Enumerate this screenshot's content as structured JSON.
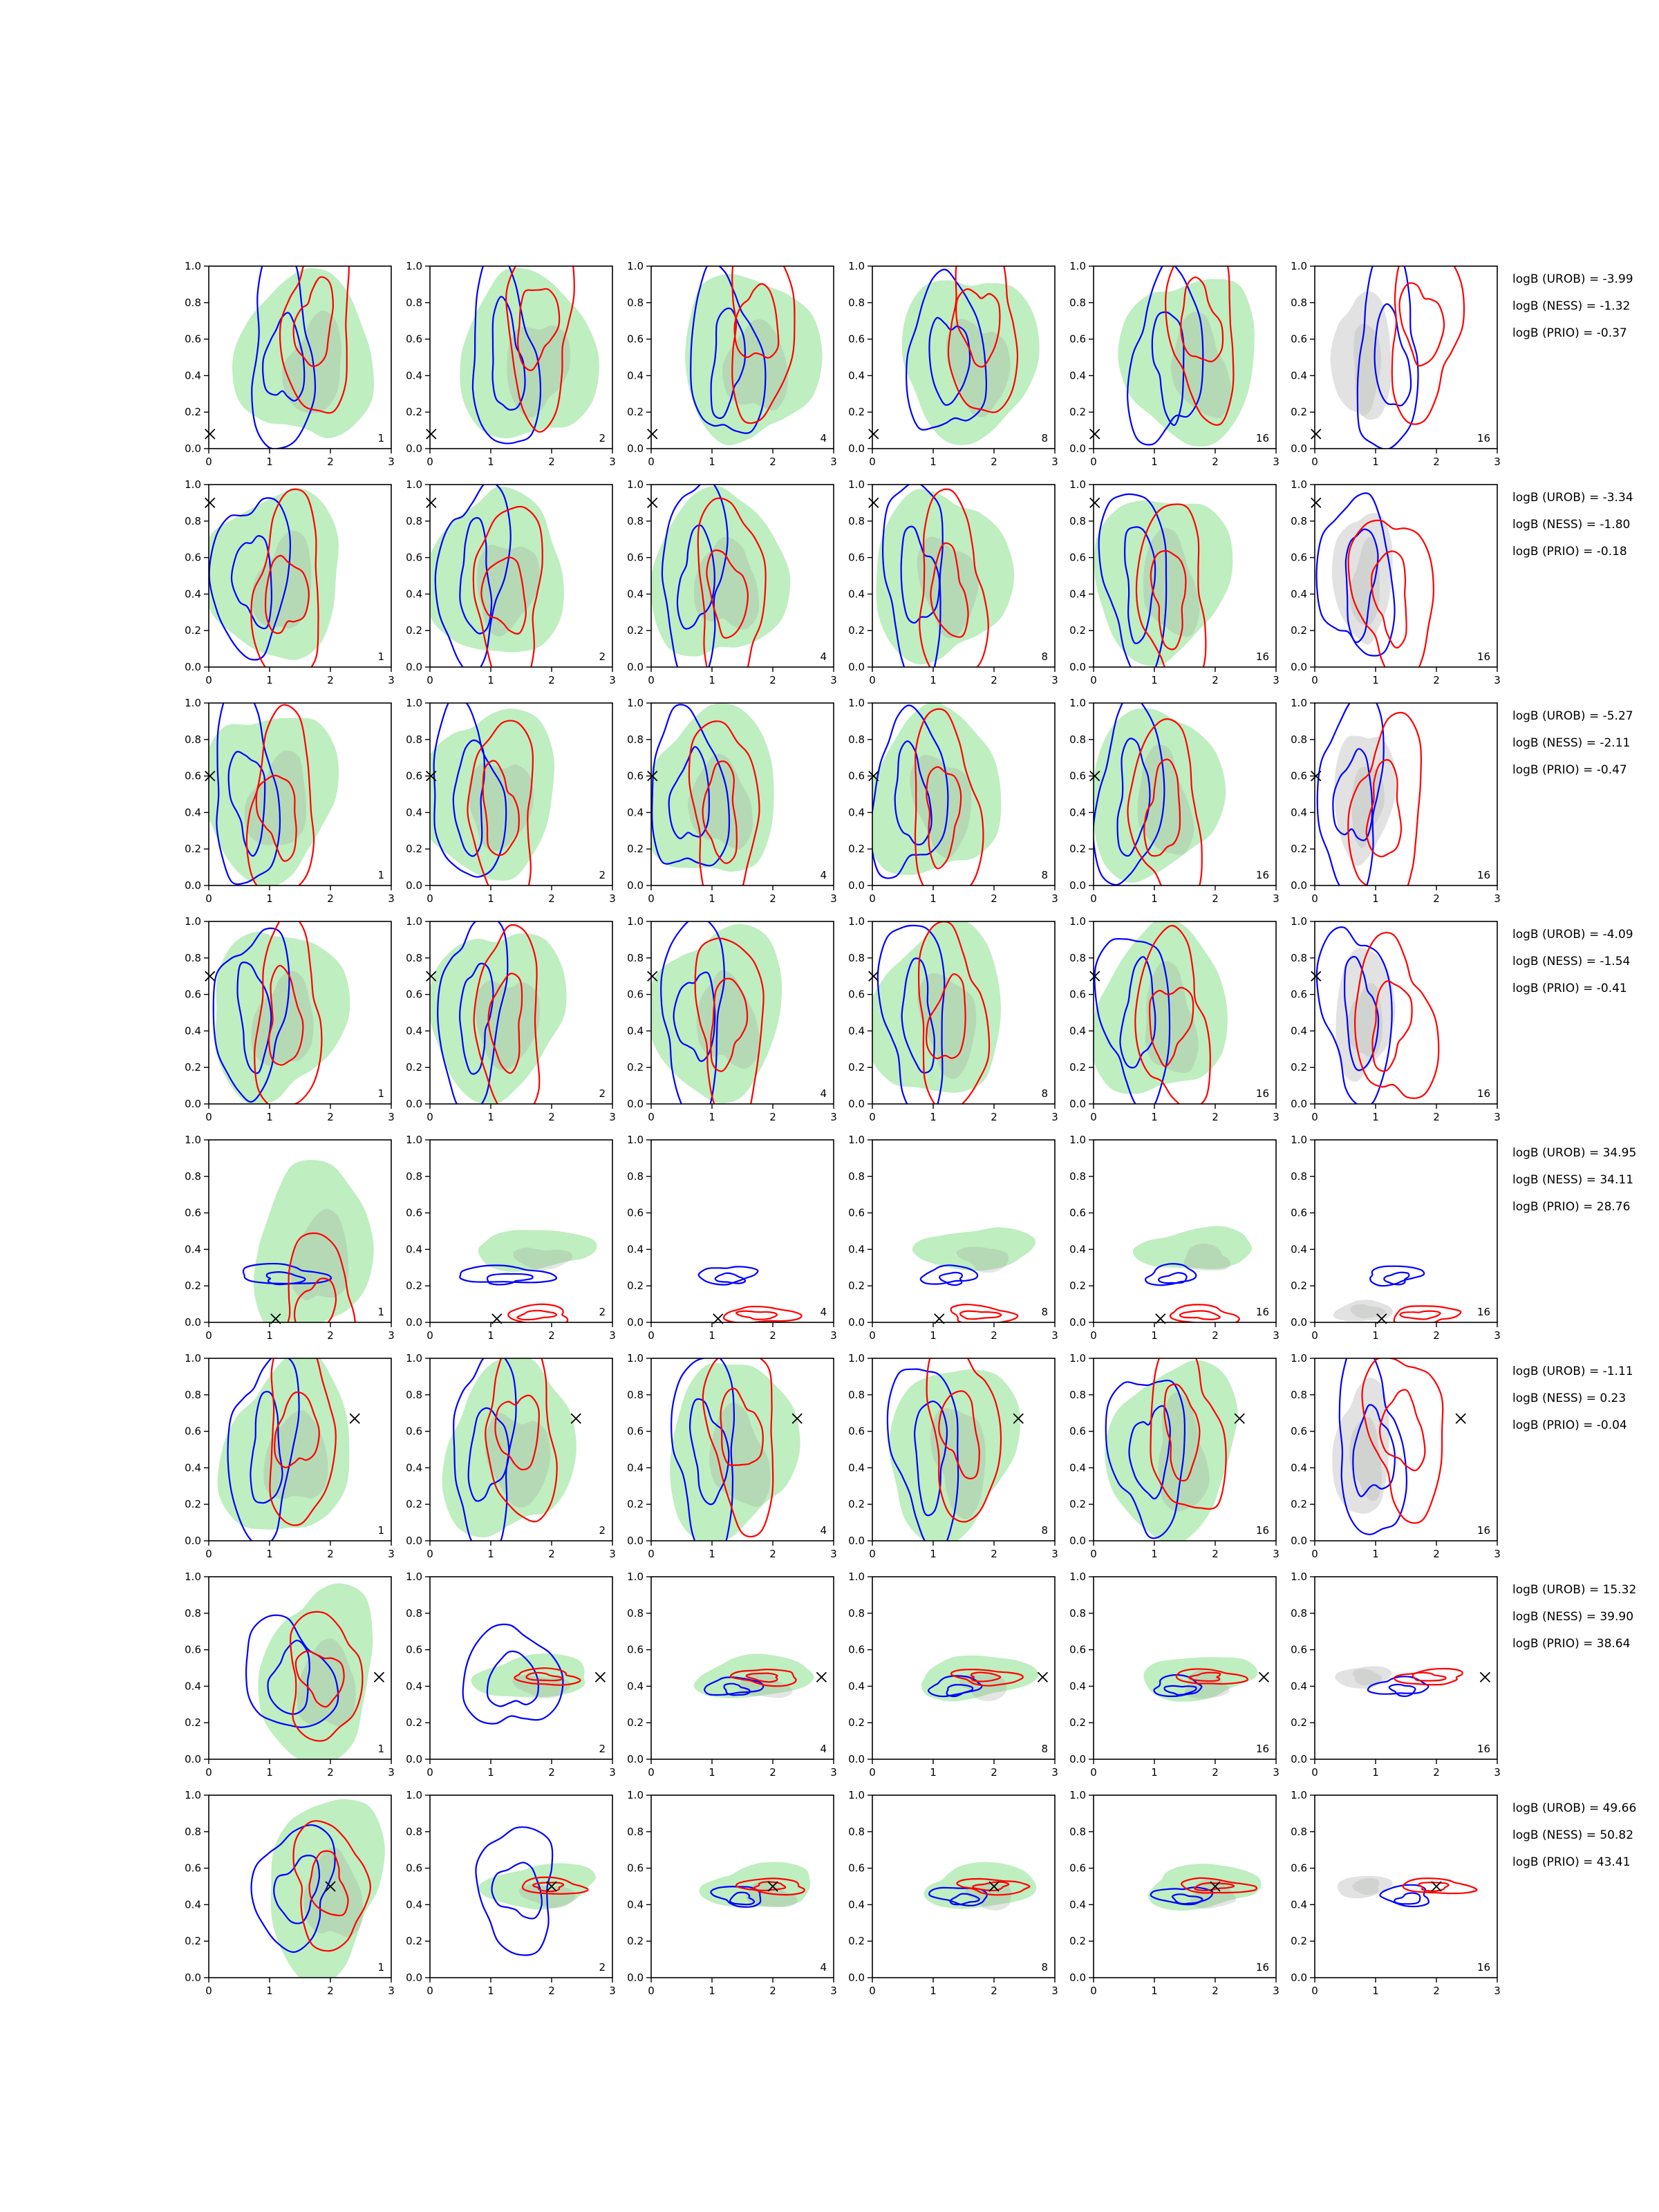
{
  "chart_data": {
    "type": "contour-grid",
    "xlim": [
      0,
      3
    ],
    "ylim": [
      0,
      1
    ],
    "x_ticks": [
      "0",
      "1",
      "2",
      "3"
    ],
    "y_ticks": [
      "0.0",
      "0.2",
      "0.4",
      "0.6",
      "0.8",
      "1.0"
    ],
    "column_labels": [
      "1",
      "2",
      "4",
      "8",
      "16",
      "16"
    ],
    "colors": {
      "prior_fill": "#bfeec0",
      "inner_fill": "#9aa79c",
      "grey_fill": "#e2e2e2",
      "line_a": "#0000ff",
      "line_b": "#ff0000",
      "marker": "#000000"
    },
    "rows": [
      {
        "marker": [
          0.02,
          0.08
        ],
        "mode": "wide",
        "cluster": [
          1.5,
          0.68
        ],
        "annotations": [
          "logB (UROB) = -3.99",
          "logB (NESS) = -1.32",
          "logB (PRIO) = -0.37"
        ]
      },
      {
        "marker": [
          0.02,
          0.9
        ],
        "mode": "wide",
        "cluster": [
          1.0,
          0.4
        ],
        "annotations": [
          "logB (UROB) = -3.34",
          "logB (NESS) = -1.80",
          "logB (PRIO) = -0.18"
        ]
      },
      {
        "marker": [
          0.02,
          0.6
        ],
        "mode": "wide",
        "cluster": [
          0.9,
          0.4
        ],
        "annotations": [
          "logB (UROB) = -5.27",
          "logB (NESS) = -2.11",
          "logB (PRIO) = -0.47"
        ]
      },
      {
        "marker": [
          0.02,
          0.7
        ],
        "mode": "wide",
        "cluster": [
          1.0,
          0.45
        ],
        "annotations": [
          "logB (UROB) = -4.09",
          "logB (NESS) = -1.54",
          "logB (PRIO) = -0.41"
        ]
      },
      {
        "marker": [
          1.1,
          0.02
        ],
        "mode": "low",
        "cluster": [
          1.6,
          0.06
        ],
        "annotations": [
          "logB (UROB) = 34.95",
          "logB (NESS) = 34.11",
          "logB (PRIO) = 28.76"
        ]
      },
      {
        "marker": [
          2.4,
          0.67
        ],
        "mode": "wide",
        "cluster": [
          1.2,
          0.6
        ],
        "annotations": [
          "logB (UROB) = -1.11",
          "logB (NESS) = 0.23",
          "logB (PRIO) = -0.04"
        ]
      },
      {
        "marker": [
          2.8,
          0.45
        ],
        "mode": "band",
        "cluster": [
          1.7,
          0.45
        ],
        "annotations": [
          "logB (UROB) = 15.32",
          "logB (NESS) = 39.90",
          "logB (PRIO) = 38.64"
        ]
      },
      {
        "marker": [
          2.0,
          0.5
        ],
        "mode": "band",
        "cluster": [
          1.8,
          0.5
        ],
        "annotations": [
          "logB (UROB) = 49.66",
          "logB (NESS) = 50.82",
          "logB (PRIO) = 43.41"
        ]
      }
    ]
  }
}
